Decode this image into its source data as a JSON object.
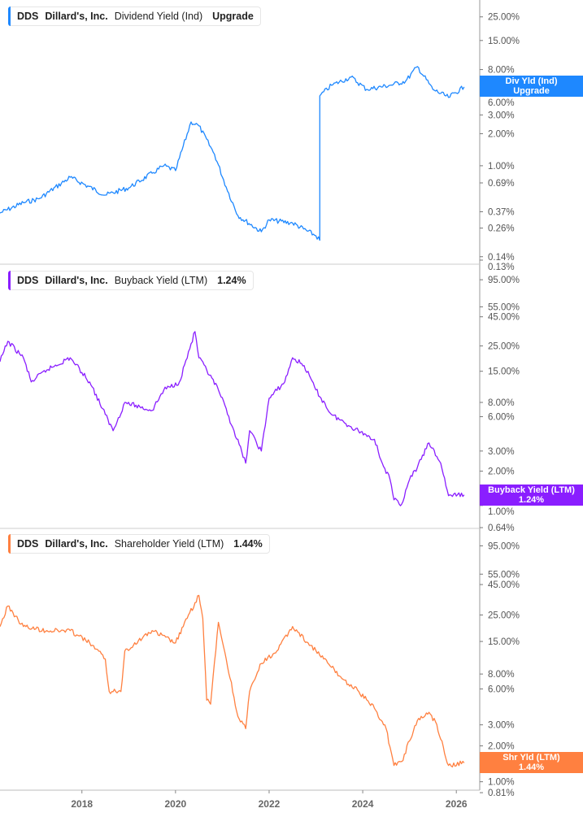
{
  "chart_data": [
    {
      "type": "line",
      "ticker": "DDS",
      "company": "Dillard's, Inc.",
      "series_name": "Dividend Yield (Ind)",
      "legend_value": "Upgrade",
      "end_tag": {
        "line1": "Div Yld (Ind)",
        "line2": "Upgrade"
      },
      "color": "#1e88ff",
      "y_scale": "log",
      "ylim": [
        0.119,
        36
      ],
      "y_ticks": [
        "25.00%",
        "15.00%",
        "8.00%",
        "6.00%",
        "3.00%",
        "2.00%",
        "1.00%",
        "0.69%",
        "0.37%",
        "0.26%",
        "0.14%",
        "0.13%"
      ],
      "y_tick_values": [
        25,
        15,
        8,
        6,
        3,
        2,
        1,
        0.69,
        0.37,
        0.26,
        0.14,
        0.13
      ],
      "x": [
        "2016-04",
        "2016-10",
        "2017-02",
        "2017-10",
        "2018-07",
        "2019-01",
        "2019-07",
        "2019-10",
        "2020-01",
        "2020-05",
        "2020-07",
        "2020-11",
        "2021-02",
        "2021-05",
        "2021-11",
        "2022-01",
        "2022-07",
        "2023-01",
        "2023-02",
        "2023-02",
        "2023-05",
        "2023-10",
        "2024-02",
        "2024-08",
        "2024-12",
        "2025-03",
        "2025-07",
        "2025-11",
        "2026-03"
      ],
      "y": [
        0.36,
        0.45,
        0.49,
        0.78,
        0.53,
        0.62,
        0.85,
        1.0,
        0.9,
        2.58,
        2.37,
        1.28,
        0.63,
        0.34,
        0.24,
        0.31,
        0.29,
        0.22,
        0.2,
        4.53,
        5.7,
        6.8,
        5.21,
        5.7,
        6.23,
        8.54,
        5.21,
        4.38,
        5.5
      ]
    },
    {
      "type": "line",
      "ticker": "DDS",
      "company": "Dillard's, Inc.",
      "series_name": "Buyback Yield (LTM)",
      "legend_value": "1.24%",
      "end_tag": {
        "line1": "Buyback Yield (LTM)",
        "line2": "1.24%"
      },
      "color": "#8a1eff",
      "y_scale": "log",
      "ylim": [
        0.63,
        130
      ],
      "y_ticks": [
        "95.00%",
        "55.00%",
        "45.00%",
        "25.00%",
        "15.00%",
        "8.00%",
        "6.00%",
        "3.00%",
        "2.00%",
        "1.00%",
        "0.64%"
      ],
      "y_tick_values": [
        95,
        55,
        45,
        25,
        15,
        8,
        6,
        3,
        2,
        1,
        0.64
      ],
      "x": [
        "2016-04",
        "2016-06",
        "2016-10",
        "2016-12",
        "2017-04",
        "2017-10",
        "2018-03",
        "2018-07",
        "2018-09",
        "2018-12",
        "2019-07",
        "2019-10",
        "2020-02",
        "2020-06",
        "2020-07",
        "2020-12",
        "2021-04",
        "2021-07",
        "2021-08",
        "2021-11",
        "2022-01",
        "2022-05",
        "2022-07",
        "2022-10",
        "2023-01",
        "2023-05",
        "2023-10",
        "2024-04",
        "2024-06",
        "2024-08",
        "2024-09",
        "2024-11",
        "2025-01",
        "2025-03",
        "2025-06",
        "2025-09",
        "2025-11",
        "2026-03"
      ],
      "y": [
        18.2,
        27.4,
        19.7,
        12.1,
        15.4,
        19.7,
        12.1,
        6.27,
        4.52,
        8.0,
        6.8,
        10.3,
        12.1,
        33.4,
        19.7,
        10.3,
        4.52,
        2.35,
        4.52,
        3.0,
        8.7,
        12.1,
        19.7,
        16.8,
        10.3,
        6.27,
        4.9,
        3.8,
        2.35,
        1.69,
        1.12,
        1.03,
        1.69,
        2.16,
        3.53,
        2.35,
        1.22,
        1.24
      ]
    },
    {
      "type": "line",
      "ticker": "DDS",
      "company": "Dillard's, Inc.",
      "series_name": "Shareholder Yield (LTM)",
      "legend_value": "1.44%",
      "end_tag": {
        "line1": "Shr Yld (LTM)",
        "line2": "1.44%"
      },
      "color": "#ff8040",
      "y_scale": "log",
      "ylim": [
        0.85,
        133
      ],
      "y_ticks": [
        "95.00%",
        "55.00%",
        "45.00%",
        "25.00%",
        "15.00%",
        "8.00%",
        "6.00%",
        "3.00%",
        "2.00%",
        "1.00%",
        "0.81%"
      ],
      "y_tick_values": [
        95,
        55,
        45,
        25,
        15,
        8,
        6,
        3,
        2,
        1,
        0.81
      ],
      "x": [
        "2016-04",
        "2016-06",
        "2016-10",
        "2017-04",
        "2017-10",
        "2018-03",
        "2018-07",
        "2018-08",
        "2018-11",
        "2018-12",
        "2019-07",
        "2020-01",
        "2020-04",
        "2020-07",
        "2020-08",
        "2020-09",
        "2020-10",
        "2020-12",
        "2021-02",
        "2021-05",
        "2021-07",
        "2021-08",
        "2021-11",
        "2022-03",
        "2022-07",
        "2022-11",
        "2023-03",
        "2023-08",
        "2023-12",
        "2024-04",
        "2024-07",
        "2024-09",
        "2024-11",
        "2025-01",
        "2025-03",
        "2025-06",
        "2025-08",
        "2025-11",
        "2026-03"
      ],
      "y": [
        20.0,
        29.7,
        20.0,
        18.5,
        18.5,
        14.6,
        10.7,
        5.7,
        5.7,
        12.5,
        18.5,
        14.6,
        23.4,
        36.5,
        23.4,
        4.84,
        4.47,
        21.7,
        10.7,
        3.53,
        2.79,
        5.7,
        9.8,
        12.5,
        20.0,
        14.6,
        10.7,
        7.2,
        5.7,
        4.13,
        2.79,
        1.37,
        1.48,
        2.2,
        3.26,
        3.82,
        3.02,
        1.37,
        1.44
      ]
    }
  ],
  "x_axis": {
    "xlim": [
      "2016-04",
      "2026-07"
    ],
    "ticks": [
      "2018",
      "2020",
      "2022",
      "2024",
      "2026"
    ]
  }
}
